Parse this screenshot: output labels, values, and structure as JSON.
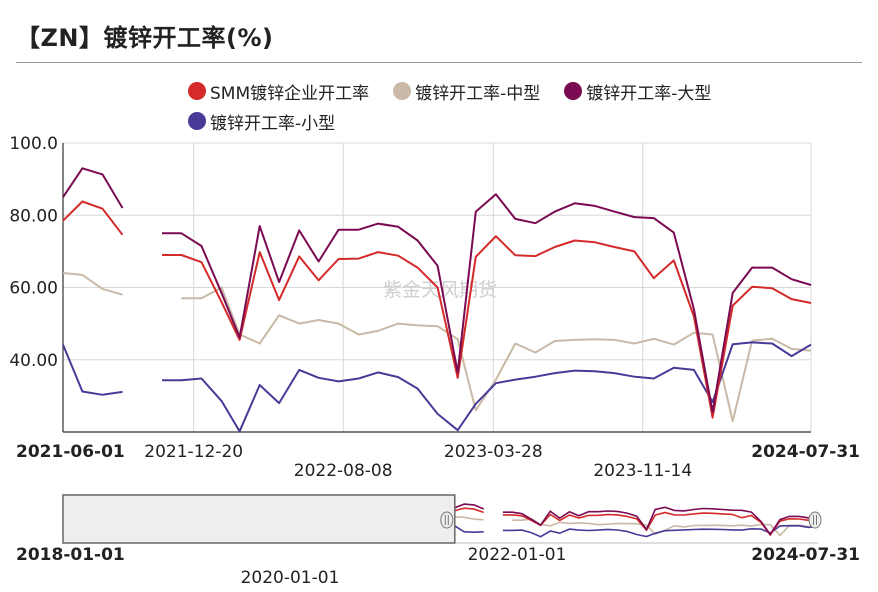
{
  "title": "【ZN】镀锌开工率(%)",
  "watermark": "紫金天风期货",
  "colors": {
    "smm": "#d42a2a",
    "mid": "#c9b9a6",
    "large": "#7a0a52",
    "small": "#4a3a98",
    "grid": "#d8d8d8",
    "axis": "#333333"
  },
  "legend": [
    {
      "label": "SMM镀锌企业开工率",
      "color": "#d42a2a"
    },
    {
      "label": "镀锌开工率-中型",
      "color": "#c9b9a6"
    },
    {
      "label": "镀锌开工率-大型",
      "color": "#7a0a52"
    },
    {
      "label": "镀锌开工率-小型",
      "color": "#4a3a98"
    }
  ],
  "chart_data": {
    "type": "line",
    "title": "【ZN】镀锌开工率(%)",
    "xlabel": "",
    "ylabel": "",
    "x_range": [
      "2021-06-01",
      "2024-07-31"
    ],
    "ylim": [
      20,
      100
    ],
    "y_ticks": [
      "40.00",
      "60.00",
      "80.00",
      "100.0"
    ],
    "x_ticks": [
      {
        "label": "2021-06-01",
        "date": "2021-06-01",
        "bold": true
      },
      {
        "label": "2021-12-20",
        "date": "2021-12-20",
        "bold": false
      },
      {
        "label": "2022-08-08",
        "date": "2022-08-08",
        "bold": false
      },
      {
        "label": "2023-03-28",
        "date": "2023-03-28",
        "bold": false
      },
      {
        "label": "2023-11-14",
        "date": "2023-11-14",
        "bold": false
      },
      {
        "label": "2024-07-31",
        "date": "2024-07-31",
        "bold": true
      }
    ],
    "grid": true,
    "legend_position": "top",
    "x": [
      "2021-06-01",
      "2021-07-01",
      "2021-08-01",
      "2021-09-01",
      "2021-10-01",
      "2021-11-01",
      "2021-12-01",
      "2022-01-01",
      "2022-02-01",
      "2022-03-01",
      "2022-04-01",
      "2022-05-01",
      "2022-06-01",
      "2022-07-01",
      "2022-08-01",
      "2022-09-01",
      "2022-10-01",
      "2022-11-01",
      "2022-12-01",
      "2023-01-01",
      "2023-02-01",
      "2023-03-01",
      "2023-04-01",
      "2023-05-01",
      "2023-06-01",
      "2023-07-01",
      "2023-08-01",
      "2023-09-01",
      "2023-10-01",
      "2023-11-01",
      "2023-12-01",
      "2024-01-01",
      "2024-02-01",
      "2024-03-01",
      "2024-04-01",
      "2024-05-01",
      "2024-06-01",
      "2024-07-01",
      "2024-07-31"
    ],
    "series": [
      {
        "name": "SMM镀锌企业开工率",
        "color": "#d42a2a",
        "values": [
          78.5,
          83.8,
          81.8,
          74.6,
          null,
          69.0,
          69.0,
          67.0,
          56.0,
          45.5,
          69.8,
          56.5,
          68.6,
          62.0,
          67.9,
          68.0,
          69.8,
          68.8,
          65.5,
          60.0,
          35.0,
          68.5,
          74.2,
          68.9,
          68.7,
          71.2,
          73.0,
          72.5,
          71.2,
          70.0,
          62.6,
          67.5,
          52.0,
          24.0,
          55.0,
          60.2,
          59.8,
          56.8,
          55.7
        ]
      },
      {
        "name": "镀锌开工率-中型",
        "color": "#c9b9a6",
        "values": [
          64.0,
          63.5,
          59.6,
          58.0,
          null,
          null,
          57.0,
          57.0,
          60.0,
          47.0,
          44.5,
          52.3,
          50.0,
          51.0,
          50.0,
          47.0,
          48.0,
          50.0,
          49.5,
          49.3,
          45.7,
          26.0,
          34.5,
          44.5,
          42.0,
          45.2,
          45.5,
          45.7,
          45.5,
          44.5,
          45.8,
          44.2,
          47.5,
          47.0,
          23.0,
          45.3,
          45.8,
          43.0,
          42.5
        ]
      },
      {
        "name": "镀锌开工率-大型",
        "color": "#7a0a52",
        "values": [
          85.0,
          93.0,
          91.3,
          82.0,
          null,
          75.0,
          75.0,
          71.5,
          58.5,
          46.2,
          77.0,
          61.5,
          75.8,
          67.2,
          76.0,
          76.0,
          77.7,
          76.8,
          73.0,
          66.0,
          36.5,
          81.0,
          85.8,
          79.0,
          77.8,
          81.0,
          83.3,
          82.6,
          81.0,
          79.5,
          79.2,
          75.2,
          54.0,
          25.5,
          58.5,
          65.5,
          65.5,
          62.3,
          60.7
        ]
      },
      {
        "name": "镀锌开工率-小型",
        "color": "#4a3a98",
        "values": [
          44.2,
          31.2,
          30.3,
          31.1,
          null,
          34.3,
          34.3,
          34.8,
          28.6,
          20.2,
          33.0,
          28.0,
          37.2,
          35.0,
          34.0,
          34.8,
          36.5,
          35.2,
          32.0,
          25.0,
          20.5,
          27.8,
          33.5,
          34.5,
          35.3,
          36.3,
          37.0,
          36.8,
          36.3,
          35.3,
          34.8,
          37.8,
          37.2,
          28.3,
          44.3,
          44.8,
          44.5,
          41.0,
          44.2
        ]
      }
    ]
  },
  "navigator": {
    "start_label": "2018-01-01",
    "mid_labels": [
      "2020-01-01",
      "2022-01-01"
    ],
    "end_label": "2024-07-31"
  }
}
